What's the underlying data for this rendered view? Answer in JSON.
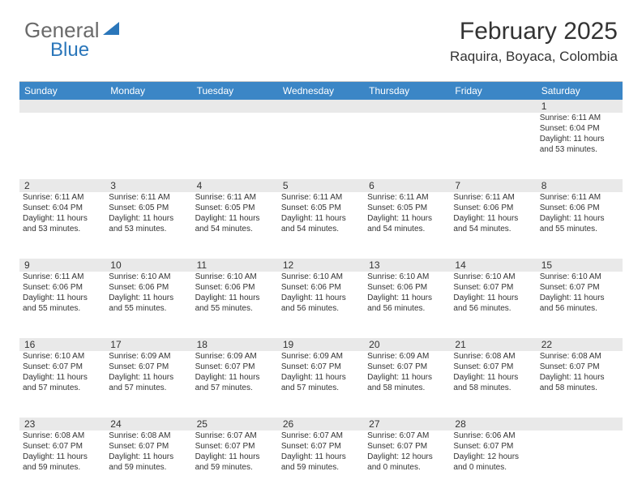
{
  "brand": {
    "word1": "General",
    "word2": "Blue"
  },
  "title": "February 2025",
  "location": "Raquira, Boyaca, Colombia",
  "colors": {
    "header_bar": "#3b86c6",
    "daynum_bg": "#e9e9e9",
    "brand_gray": "#6a6a6a",
    "brand_blue": "#2a76ba",
    "text": "#333333",
    "border": "#c9c9c9"
  },
  "weekdays": [
    "Sunday",
    "Monday",
    "Tuesday",
    "Wednesday",
    "Thursday",
    "Friday",
    "Saturday"
  ],
  "weeks": [
    [
      null,
      null,
      null,
      null,
      null,
      null,
      {
        "n": "1",
        "sr": "Sunrise: 6:11 AM",
        "ss": "Sunset: 6:04 PM",
        "dl": "Daylight: 11 hours and 53 minutes."
      }
    ],
    [
      {
        "n": "2",
        "sr": "Sunrise: 6:11 AM",
        "ss": "Sunset: 6:04 PM",
        "dl": "Daylight: 11 hours and 53 minutes."
      },
      {
        "n": "3",
        "sr": "Sunrise: 6:11 AM",
        "ss": "Sunset: 6:05 PM",
        "dl": "Daylight: 11 hours and 53 minutes."
      },
      {
        "n": "4",
        "sr": "Sunrise: 6:11 AM",
        "ss": "Sunset: 6:05 PM",
        "dl": "Daylight: 11 hours and 54 minutes."
      },
      {
        "n": "5",
        "sr": "Sunrise: 6:11 AM",
        "ss": "Sunset: 6:05 PM",
        "dl": "Daylight: 11 hours and 54 minutes."
      },
      {
        "n": "6",
        "sr": "Sunrise: 6:11 AM",
        "ss": "Sunset: 6:05 PM",
        "dl": "Daylight: 11 hours and 54 minutes."
      },
      {
        "n": "7",
        "sr": "Sunrise: 6:11 AM",
        "ss": "Sunset: 6:06 PM",
        "dl": "Daylight: 11 hours and 54 minutes."
      },
      {
        "n": "8",
        "sr": "Sunrise: 6:11 AM",
        "ss": "Sunset: 6:06 PM",
        "dl": "Daylight: 11 hours and 55 minutes."
      }
    ],
    [
      {
        "n": "9",
        "sr": "Sunrise: 6:11 AM",
        "ss": "Sunset: 6:06 PM",
        "dl": "Daylight: 11 hours and 55 minutes."
      },
      {
        "n": "10",
        "sr": "Sunrise: 6:10 AM",
        "ss": "Sunset: 6:06 PM",
        "dl": "Daylight: 11 hours and 55 minutes."
      },
      {
        "n": "11",
        "sr": "Sunrise: 6:10 AM",
        "ss": "Sunset: 6:06 PM",
        "dl": "Daylight: 11 hours and 55 minutes."
      },
      {
        "n": "12",
        "sr": "Sunrise: 6:10 AM",
        "ss": "Sunset: 6:06 PM",
        "dl": "Daylight: 11 hours and 56 minutes."
      },
      {
        "n": "13",
        "sr": "Sunrise: 6:10 AM",
        "ss": "Sunset: 6:06 PM",
        "dl": "Daylight: 11 hours and 56 minutes."
      },
      {
        "n": "14",
        "sr": "Sunrise: 6:10 AM",
        "ss": "Sunset: 6:07 PM",
        "dl": "Daylight: 11 hours and 56 minutes."
      },
      {
        "n": "15",
        "sr": "Sunrise: 6:10 AM",
        "ss": "Sunset: 6:07 PM",
        "dl": "Daylight: 11 hours and 56 minutes."
      }
    ],
    [
      {
        "n": "16",
        "sr": "Sunrise: 6:10 AM",
        "ss": "Sunset: 6:07 PM",
        "dl": "Daylight: 11 hours and 57 minutes."
      },
      {
        "n": "17",
        "sr": "Sunrise: 6:09 AM",
        "ss": "Sunset: 6:07 PM",
        "dl": "Daylight: 11 hours and 57 minutes."
      },
      {
        "n": "18",
        "sr": "Sunrise: 6:09 AM",
        "ss": "Sunset: 6:07 PM",
        "dl": "Daylight: 11 hours and 57 minutes."
      },
      {
        "n": "19",
        "sr": "Sunrise: 6:09 AM",
        "ss": "Sunset: 6:07 PM",
        "dl": "Daylight: 11 hours and 57 minutes."
      },
      {
        "n": "20",
        "sr": "Sunrise: 6:09 AM",
        "ss": "Sunset: 6:07 PM",
        "dl": "Daylight: 11 hours and 58 minutes."
      },
      {
        "n": "21",
        "sr": "Sunrise: 6:08 AM",
        "ss": "Sunset: 6:07 PM",
        "dl": "Daylight: 11 hours and 58 minutes."
      },
      {
        "n": "22",
        "sr": "Sunrise: 6:08 AM",
        "ss": "Sunset: 6:07 PM",
        "dl": "Daylight: 11 hours and 58 minutes."
      }
    ],
    [
      {
        "n": "23",
        "sr": "Sunrise: 6:08 AM",
        "ss": "Sunset: 6:07 PM",
        "dl": "Daylight: 11 hours and 59 minutes."
      },
      {
        "n": "24",
        "sr": "Sunrise: 6:08 AM",
        "ss": "Sunset: 6:07 PM",
        "dl": "Daylight: 11 hours and 59 minutes."
      },
      {
        "n": "25",
        "sr": "Sunrise: 6:07 AM",
        "ss": "Sunset: 6:07 PM",
        "dl": "Daylight: 11 hours and 59 minutes."
      },
      {
        "n": "26",
        "sr": "Sunrise: 6:07 AM",
        "ss": "Sunset: 6:07 PM",
        "dl": "Daylight: 11 hours and 59 minutes."
      },
      {
        "n": "27",
        "sr": "Sunrise: 6:07 AM",
        "ss": "Sunset: 6:07 PM",
        "dl": "Daylight: 12 hours and 0 minutes."
      },
      {
        "n": "28",
        "sr": "Sunrise: 6:06 AM",
        "ss": "Sunset: 6:07 PM",
        "dl": "Daylight: 12 hours and 0 minutes."
      },
      null
    ]
  ]
}
